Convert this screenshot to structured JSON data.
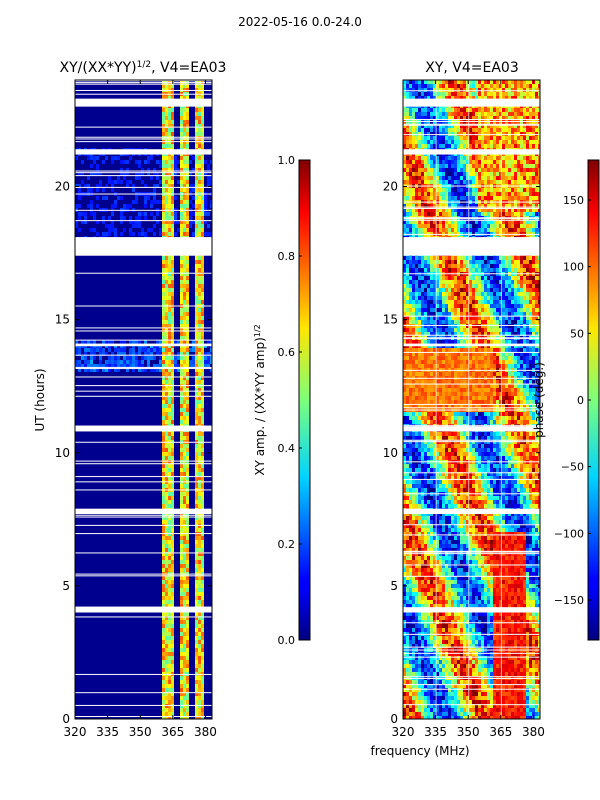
{
  "figure": {
    "suptitle": "2022-05-16 0.0-24.0"
  },
  "chart_data": [
    {
      "type": "heatmap",
      "title_base": "XY/(XX*YY)",
      "title_exp": "1/2",
      "title_suffix": ", V4=EA03",
      "xlabel": "",
      "ylabel": "UT (hours)",
      "xlim": [
        320,
        383
      ],
      "ylim": [
        0,
        24
      ],
      "xticks": [
        320,
        335,
        350,
        365,
        380
      ],
      "yticks": [
        0,
        5,
        10,
        15,
        20
      ],
      "colorbar": {
        "label_base": "XY amp. / (XX*YY amp)",
        "label_exp": "1/2",
        "range": [
          0.0,
          1.0
        ],
        "ticks": [
          "0.0",
          "0.2",
          "0.4",
          "0.6",
          "0.8",
          "1.0"
        ],
        "tick_values": [
          0.0,
          0.2,
          0.4,
          0.6,
          0.8,
          1.0
        ]
      },
      "bright_bands_mhz": [
        [
          360,
          366
        ],
        [
          368,
          372
        ],
        [
          375,
          379
        ]
      ],
      "gaps_hours": [
        [
          17.4,
          18.1
        ],
        [
          10.8,
          11.0
        ],
        [
          14.0,
          14.1
        ],
        [
          4.0,
          4.2
        ],
        [
          7.7,
          7.9
        ],
        [
          21.2,
          21.4
        ],
        [
          23.0,
          23.3
        ]
      ]
    },
    {
      "type": "heatmap",
      "title": "XY, V4=EA03",
      "xlabel": "frequency (MHz)",
      "ylabel": "",
      "xlim": [
        320,
        383
      ],
      "ylim": [
        0,
        24
      ],
      "xticks": [
        320,
        335,
        350,
        365,
        380
      ],
      "yticks": [
        0,
        5,
        10,
        15,
        20
      ],
      "colorbar": {
        "label": "phase (deg.)",
        "range": [
          -180,
          180
        ],
        "ticks": [
          "150",
          "100",
          "50",
          "0",
          "−50",
          "−100",
          "−150"
        ],
        "tick_values": [
          150,
          100,
          50,
          0,
          -50,
          -100,
          -150
        ]
      },
      "gaps_hours": [
        [
          17.4,
          18.1
        ],
        [
          10.8,
          11.0
        ],
        [
          14.0,
          14.1
        ],
        [
          4.0,
          4.2
        ],
        [
          7.7,
          7.9
        ],
        [
          21.2,
          21.4
        ],
        [
          23.0,
          23.3
        ]
      ]
    }
  ]
}
